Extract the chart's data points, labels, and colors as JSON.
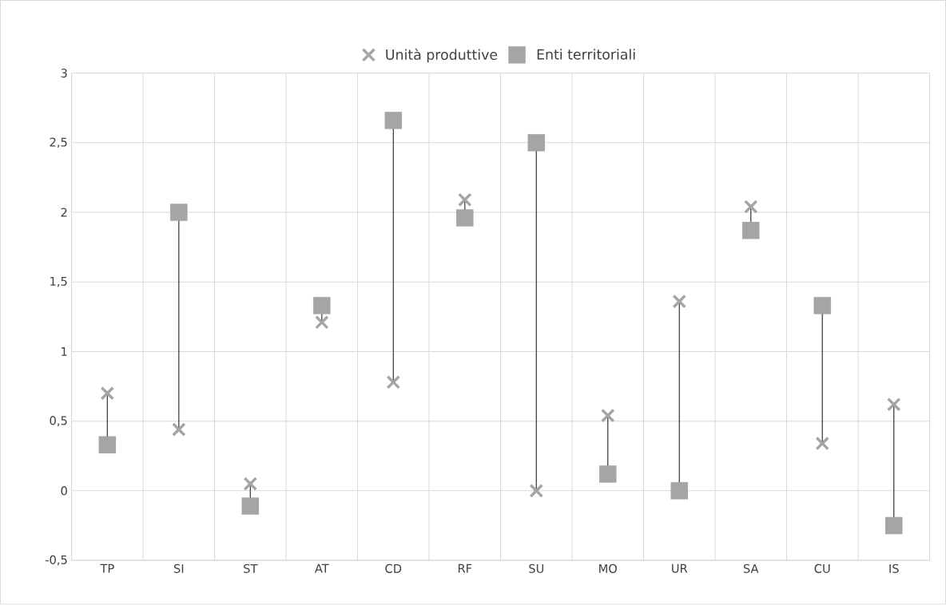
{
  "chart_data": {
    "type": "scatter",
    "categories": [
      "TP",
      "SI",
      "ST",
      "AT",
      "CD",
      "RF",
      "SU",
      "MO",
      "UR",
      "SA",
      "CU",
      "IS"
    ],
    "series": [
      {
        "name": "Unità produttive",
        "color": "#a5a5a5",
        "marker": "cross",
        "values": [
          0.7,
          0.44,
          0.05,
          1.21,
          0.78,
          2.09,
          0,
          0.54,
          1.36,
          2.04,
          0.34,
          0.62
        ]
      },
      {
        "name": "Enti territoriali",
        "color": "#a5a5a5",
        "marker": "square",
        "values": [
          0.33,
          2.0,
          -0.11,
          1.33,
          2.66,
          1.96,
          2.5,
          0.12,
          0,
          1.87,
          1.33,
          -0.25
        ]
      }
    ],
    "ylim": [
      -0.5,
      3
    ],
    "yticks": [
      {
        "value": -0.5,
        "label": "-0,5"
      },
      0,
      {
        "value": 0.5,
        "label": "0,5"
      },
      1,
      {
        "value": 1.5,
        "label": "1,5"
      },
      2,
      {
        "value": 2.5,
        "label": "2,5"
      },
      3
    ],
    "grid": true,
    "legend": "top"
  }
}
